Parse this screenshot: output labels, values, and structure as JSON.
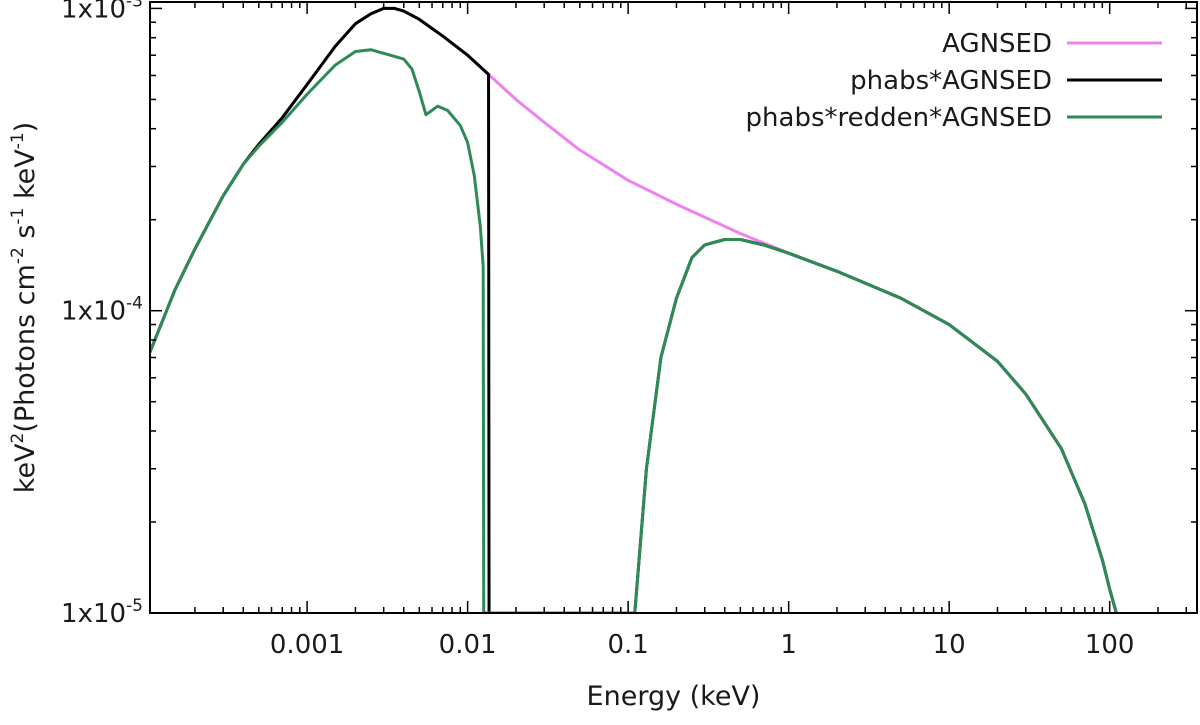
{
  "chart_data": {
    "type": "line",
    "xlabel": "Energy (keV)",
    "ylabel": {
      "parts": [
        {
          "text": "keV",
          "sup": false
        },
        {
          "text": "2",
          "sup": true
        },
        {
          "text": "(Photons cm",
          "sup": false
        },
        {
          "text": "-2",
          "sup": true
        },
        {
          "text": " s",
          "sup": false
        },
        {
          "text": "-1",
          "sup": true
        },
        {
          "text": " keV",
          "sup": false
        },
        {
          "text": "-1",
          "sup": true
        },
        {
          "text": ")",
          "sup": false
        }
      ]
    },
    "x_scale": "log",
    "y_scale": "log",
    "xlim": [
      0.000105,
      350
    ],
    "ylim": [
      1e-05,
      0.00105
    ],
    "x_ticks": [
      {
        "value": 0.001,
        "label": "0.001"
      },
      {
        "value": 0.01,
        "label": "0.01"
      },
      {
        "value": 0.1,
        "label": "0.1"
      },
      {
        "value": 1,
        "label": "1"
      },
      {
        "value": 10,
        "label": "10"
      },
      {
        "value": 100,
        "label": "100"
      }
    ],
    "y_ticks": [
      {
        "value": 1e-05,
        "base": "1x10",
        "exp": "-5"
      },
      {
        "value": 0.0001,
        "base": "1x10",
        "exp": "-4"
      },
      {
        "value": 0.001,
        "base": "1x10",
        "exp": "-3"
      }
    ],
    "legend_position": "top-right",
    "series": [
      {
        "name": "AGNSED",
        "color": "#ee82ee",
        "points": [
          [
            0.000105,
            7.3e-05
          ],
          [
            0.00015,
            0.000117
          ],
          [
            0.0002,
            0.00016
          ],
          [
            0.0003,
            0.00024
          ],
          [
            0.0004,
            0.000305
          ],
          [
            0.0005,
            0.000355
          ],
          [
            0.0007,
            0.000435
          ],
          [
            0.001,
            0.00056
          ],
          [
            0.0015,
            0.00075
          ],
          [
            0.002,
            0.00089
          ],
          [
            0.0025,
            0.00096
          ],
          [
            0.003,
            0.001
          ],
          [
            0.0035,
            0.001
          ],
          [
            0.004,
            0.00098
          ],
          [
            0.005,
            0.00092
          ],
          [
            0.007,
            0.00081
          ],
          [
            0.01,
            0.0007
          ],
          [
            0.0135,
            0.000605
          ],
          [
            0.02,
            0.0005
          ],
          [
            0.03,
            0.00042
          ],
          [
            0.05,
            0.00034
          ],
          [
            0.1,
            0.00027
          ],
          [
            0.2,
            0.000225
          ],
          [
            0.5,
            0.00018
          ],
          [
            1,
            0.000155
          ],
          [
            2,
            0.000135
          ],
          [
            5,
            0.00011
          ],
          [
            10,
            9e-05
          ],
          [
            20,
            6.8e-05
          ],
          [
            30,
            5.3e-05
          ],
          [
            50,
            3.5e-05
          ],
          [
            70,
            2.3e-05
          ],
          [
            90,
            1.5e-05
          ],
          [
            100,
            1.2e-05
          ],
          [
            110,
            1e-05
          ]
        ]
      },
      {
        "name": "phabs*AGNSED",
        "color": "#000000",
        "points": [
          [
            0.000105,
            7.3e-05
          ],
          [
            0.00015,
            0.000117
          ],
          [
            0.0002,
            0.00016
          ],
          [
            0.0003,
            0.00024
          ],
          [
            0.0004,
            0.000305
          ],
          [
            0.0005,
            0.000355
          ],
          [
            0.0007,
            0.000435
          ],
          [
            0.001,
            0.00056
          ],
          [
            0.0015,
            0.00075
          ],
          [
            0.002,
            0.00089
          ],
          [
            0.0025,
            0.00096
          ],
          [
            0.003,
            0.001
          ],
          [
            0.0035,
            0.001
          ],
          [
            0.004,
            0.00098
          ],
          [
            0.005,
            0.00092
          ],
          [
            0.007,
            0.00081
          ],
          [
            0.01,
            0.0007
          ],
          [
            0.0135,
            0.000605
          ],
          [
            0.0136,
            1e-05
          ],
          [
            0.1,
            1e-05
          ],
          [
            0.11,
            1e-05
          ],
          [
            0.13,
            3e-05
          ],
          [
            0.16,
            7e-05
          ],
          [
            0.2,
            0.00011
          ],
          [
            0.25,
            0.00015
          ],
          [
            0.3,
            0.000165
          ],
          [
            0.4,
            0.000172
          ],
          [
            0.5,
            0.000172
          ],
          [
            0.7,
            0.000165
          ],
          [
            1,
            0.000155
          ],
          [
            2,
            0.000135
          ],
          [
            5,
            0.00011
          ],
          [
            10,
            9e-05
          ],
          [
            20,
            6.8e-05
          ],
          [
            30,
            5.3e-05
          ],
          [
            50,
            3.5e-05
          ],
          [
            70,
            2.3e-05
          ],
          [
            90,
            1.5e-05
          ],
          [
            100,
            1.2e-05
          ],
          [
            110,
            1e-05
          ]
        ]
      },
      {
        "name": "phabs*redden*AGNSED",
        "color": "#2e8b57",
        "points": [
          [
            0.000105,
            7.3e-05
          ],
          [
            0.00015,
            0.000117
          ],
          [
            0.0002,
            0.00016
          ],
          [
            0.0003,
            0.00024
          ],
          [
            0.0004,
            0.000305
          ],
          [
            0.0005,
            0.00035
          ],
          [
            0.0007,
            0.00042
          ],
          [
            0.001,
            0.00052
          ],
          [
            0.0015,
            0.00065
          ],
          [
            0.002,
            0.00072
          ],
          [
            0.0025,
            0.00073
          ],
          [
            0.003,
            0.00071
          ],
          [
            0.004,
            0.00068
          ],
          [
            0.0045,
            0.00063
          ],
          [
            0.005,
            0.00053
          ],
          [
            0.0055,
            0.000445
          ],
          [
            0.006,
            0.00046
          ],
          [
            0.0065,
            0.000475
          ],
          [
            0.0075,
            0.00046
          ],
          [
            0.009,
            0.00041
          ],
          [
            0.01,
            0.00036
          ],
          [
            0.011,
            0.00028
          ],
          [
            0.012,
            0.00019
          ],
          [
            0.0125,
            0.00014
          ],
          [
            0.0126,
            1e-05
          ],
          [
            0.1,
            1e-05
          ],
          [
            0.11,
            1e-05
          ],
          [
            0.13,
            3e-05
          ],
          [
            0.16,
            7e-05
          ],
          [
            0.2,
            0.00011
          ],
          [
            0.25,
            0.00015
          ],
          [
            0.3,
            0.000165
          ],
          [
            0.4,
            0.000172
          ],
          [
            0.5,
            0.000172
          ],
          [
            0.7,
            0.000165
          ],
          [
            1,
            0.000155
          ],
          [
            2,
            0.000135
          ],
          [
            5,
            0.00011
          ],
          [
            10,
            9e-05
          ],
          [
            20,
            6.8e-05
          ],
          [
            30,
            5.3e-05
          ],
          [
            50,
            3.5e-05
          ],
          [
            70,
            2.3e-05
          ],
          [
            90,
            1.5e-05
          ],
          [
            100,
            1.2e-05
          ],
          [
            110,
            1e-05
          ]
        ]
      }
    ]
  }
}
